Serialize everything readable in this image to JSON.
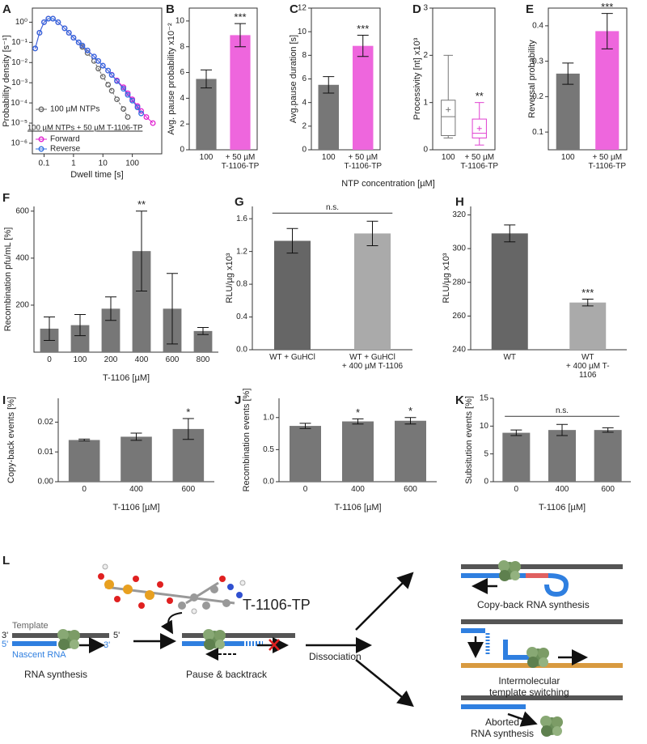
{
  "chart_data": [
    {
      "type": "line",
      "label": "A",
      "xlabel": "Dwell time [s]",
      "ylabel": "Probability density [s⁻¹]",
      "xlog": true,
      "ylog": true,
      "xlim": [
        0.04,
        1000
      ],
      "ylim": [
        3e-07,
        5
      ],
      "xticks": [
        0.1,
        1,
        10,
        100
      ],
      "yticks": [
        {
          "value": 1e-06,
          "label": "10⁻⁶"
        },
        {
          "value": 1e-05,
          "label": "10⁻⁵"
        },
        {
          "value": 0.0001,
          "label": "10⁻⁴"
        },
        {
          "value": 0.001,
          "label": "10⁻³"
        },
        {
          "value": 0.01,
          "label": "10⁻²"
        },
        {
          "value": 0.1,
          "label": "10⁻¹"
        },
        {
          "value": 1,
          "label": "10⁰"
        }
      ],
      "legend_group": "100 µM NTPs + 50 µM T-1106-TP",
      "x": [
        0.05,
        0.07,
        0.1,
        0.14,
        0.2,
        0.3,
        0.5,
        0.7,
        1,
        1.5,
        2,
        3,
        5,
        7,
        10,
        15,
        20,
        30,
        50,
        70,
        100,
        150,
        200,
        300,
        500
      ],
      "series": [
        {
          "name": "100 µM NTPs",
          "color": "#666666",
          "line_style": "dashed",
          "values": [
            0.05,
            0.3,
            1,
            1.5,
            1.5,
            1.0,
            0.5,
            0.3,
            0.17,
            0.1,
            0.06,
            0.03,
            0.012,
            0.005,
            0.002,
            0.0008,
            0.0004,
            0.00015,
            5e-05,
            2e-05,
            null,
            null,
            null,
            null,
            null
          ]
        },
        {
          "name": "Forward",
          "color": "#e020d0",
          "line_style": "solid",
          "values": [
            0.05,
            0.3,
            1,
            1.5,
            1.5,
            1.0,
            0.5,
            0.3,
            0.17,
            0.1,
            0.07,
            0.04,
            0.02,
            0.012,
            0.007,
            0.004,
            0.0025,
            0.0013,
            0.0006,
            0.0003,
            0.00015,
            7e-05,
            4e-05,
            2e-05,
            1e-05
          ]
        },
        {
          "name": "Reverse",
          "color": "#3070e0",
          "line_style": "solid",
          "values": [
            0.05,
            0.3,
            1,
            1.5,
            1.5,
            1.0,
            0.5,
            0.3,
            0.17,
            0.1,
            0.07,
            0.04,
            0.02,
            0.012,
            0.007,
            0.004,
            0.0024,
            0.0012,
            0.0005,
            0.00025,
            0.00013,
            6e-05,
            3e-05,
            null,
            null
          ]
        }
      ]
    },
    {
      "type": "bar",
      "label": "B",
      "ylabel": "Avg. pause probability x10⁻²",
      "categories": [
        "100",
        "+ 50 µM\nT-1106-TP"
      ],
      "values": [
        5.5,
        8.9
      ],
      "errors": [
        0.7,
        0.9
      ],
      "colors": [
        "#777777",
        "#ee66dd"
      ],
      "significance": [
        null,
        "***"
      ],
      "ylim": [
        0,
        11
      ],
      "yticks": [
        0,
        2,
        4,
        6,
        8,
        10
      ]
    },
    {
      "type": "bar",
      "label": "C",
      "ylabel": "Avg.pause duration [s]",
      "categories": [
        "100",
        "+ 50 µM\nT-1106-TP"
      ],
      "values": [
        5.5,
        8.8
      ],
      "errors": [
        0.7,
        0.9
      ],
      "colors": [
        "#777777",
        "#ee66dd"
      ],
      "significance": [
        null,
        "***"
      ],
      "ylim": [
        0,
        12
      ],
      "yticks": [
        0,
        2,
        4,
        6,
        8,
        10,
        12
      ]
    },
    {
      "type": "box",
      "label": "D",
      "ylabel": "Processivity [nt] x10³",
      "categories": [
        "100",
        "+ 50 µM\nT-1106-TP"
      ],
      "colors": [
        "#777777",
        "#e040d0"
      ],
      "significance": [
        null,
        "**"
      ],
      "boxes": [
        {
          "min": 0.25,
          "q1": 0.3,
          "median": 0.7,
          "q3": 1.05,
          "max": 2.0,
          "mean": 0.85
        },
        {
          "min": 0.1,
          "q1": 0.25,
          "median": 0.35,
          "q3": 0.65,
          "max": 1.0,
          "mean": 0.45
        }
      ],
      "ylim": [
        0,
        3
      ],
      "yticks": [
        0,
        1,
        2,
        3
      ]
    },
    {
      "type": "bar",
      "label": "E",
      "ylabel": "Reversal probability",
      "categories": [
        "100",
        "+ 50 µM\nT-1106-TP"
      ],
      "values": [
        0.265,
        0.385
      ],
      "errors": [
        0.03,
        0.05
      ],
      "colors": [
        "#777777",
        "#ee66dd"
      ],
      "significance": [
        null,
        "***"
      ],
      "ylim": [
        0.05,
        0.45
      ],
      "yticks": [
        0.1,
        0.2,
        0.3,
        0.4
      ]
    },
    {
      "type": "bar",
      "label": "F",
      "ylabel": "Recombination pfu/mL [%]",
      "xlabel": "T-1106 [µM]",
      "categories": [
        "0",
        "100",
        "200",
        "400",
        "600",
        "800"
      ],
      "values": [
        100,
        115,
        185,
        430,
        185,
        90
      ],
      "errors": [
        50,
        45,
        50,
        170,
        150,
        15
      ],
      "colors": [
        "#777777",
        "#777777",
        "#777777",
        "#777777",
        "#777777",
        "#777777"
      ],
      "significance": [
        null,
        null,
        null,
        "**",
        null,
        null
      ],
      "ylim": [
        0,
        620
      ],
      "yticks": [
        200,
        400,
        600
      ]
    },
    {
      "type": "bar",
      "label": "G",
      "ylabel": "RLU/µg x10³",
      "categories": [
        "WT + GuHCl",
        "WT + GuHCl\n+ 400 µM T-1106"
      ],
      "values": [
        1.33,
        1.42
      ],
      "errors": [
        0.15,
        0.15
      ],
      "colors": [
        "#666666",
        "#aaaaaa"
      ],
      "bracket": "n.s.",
      "ylim": [
        0,
        1.75
      ],
      "yticks": [
        {
          "value": 0,
          "label": "0.0"
        },
        0.4,
        0.8,
        1.2,
        1.6
      ]
    },
    {
      "type": "bar",
      "label": "H",
      "ylabel": "RLU/µg x10³",
      "categories": [
        "WT",
        "WT\n+ 400 µM T-1106"
      ],
      "values": [
        309,
        268
      ],
      "errors": [
        5,
        2
      ],
      "colors": [
        "#666666",
        "#aaaaaa"
      ],
      "significance": [
        null,
        "***"
      ],
      "ylim": [
        240,
        325
      ],
      "yticks": [
        240,
        260,
        280,
        300,
        320
      ]
    },
    {
      "type": "bar",
      "label": "I",
      "ylabel": "Copy-back events [%]",
      "xlabel": "T-1106 [µM]",
      "categories": [
        "0",
        "400",
        "600"
      ],
      "values": [
        0.014,
        0.0151,
        0.0177
      ],
      "errors": [
        0.0003,
        0.0012,
        0.0035
      ],
      "colors": [
        "#777777",
        "#777777",
        "#777777"
      ],
      "significance": [
        null,
        null,
        "*"
      ],
      "ylim": [
        0,
        0.028
      ],
      "yticks": [
        {
          "value": 0,
          "label": "0.00"
        },
        0.01,
        0.02
      ]
    },
    {
      "type": "bar",
      "label": "J",
      "ylabel": "Recombination events [%]",
      "xlabel": "T-1106 [µM]",
      "categories": [
        "0",
        "400",
        "600"
      ],
      "values": [
        0.87,
        0.94,
        0.95
      ],
      "errors": [
        0.04,
        0.04,
        0.05
      ],
      "colors": [
        "#777777",
        "#777777",
        "#777777"
      ],
      "significance": [
        null,
        "*",
        "*"
      ],
      "ylim": [
        0,
        1.3
      ],
      "yticks": [
        {
          "value": 0,
          "label": "0.0"
        },
        0.5,
        {
          "value": 1,
          "label": "1.0"
        }
      ]
    },
    {
      "type": "bar",
      "label": "K",
      "ylabel": "Subsitution events [%]",
      "xlabel": "T-1106 [µM]",
      "categories": [
        "0",
        "400",
        "600"
      ],
      "values": [
        8.8,
        9.3,
        9.3
      ],
      "errors": [
        0.5,
        1.0,
        0.4
      ],
      "colors": [
        "#777777",
        "#777777",
        "#777777"
      ],
      "bracket": "n.s.",
      "ylim": [
        0,
        15
      ],
      "yticks": [
        0,
        5,
        10,
        15
      ]
    }
  ],
  "shared_xlabel": "NTP concentration [µM]",
  "diagram": {
    "label": "L",
    "molecule": "T-1106-TP",
    "template": "Template",
    "nascent": "Nascent RNA",
    "ends": [
      "3'",
      "5'",
      "5'",
      "3'"
    ],
    "steps": [
      "RNA synthesis",
      "Pause & backtrack"
    ],
    "dissociation": "Dissociation",
    "outcomes": [
      "Copy-back RNA synthesis",
      "Intermolecular\ntemplate switching",
      "Aborted\nRNA synthesis"
    ]
  }
}
